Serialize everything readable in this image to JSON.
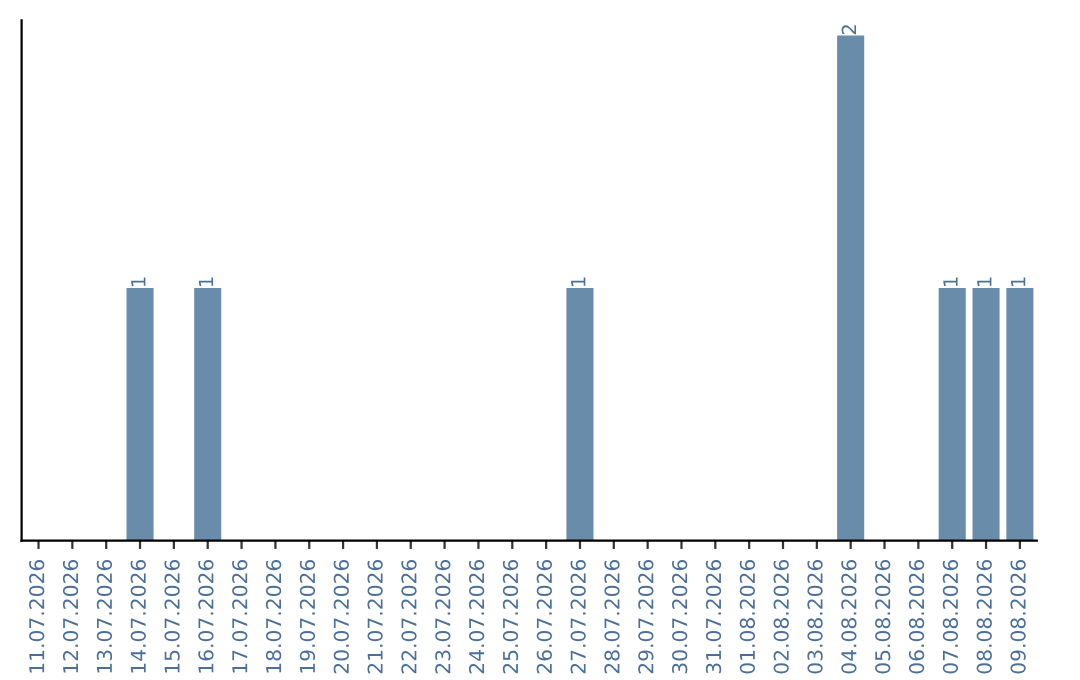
{
  "chart_data": {
    "type": "bar",
    "categories": [
      "11.07.2026",
      "12.07.2026",
      "13.07.2026",
      "14.07.2026",
      "15.07.2026",
      "16.07.2026",
      "17.07.2026",
      "18.07.2026",
      "19.07.2026",
      "20.07.2026",
      "21.07.2026",
      "22.07.2026",
      "23.07.2026",
      "24.07.2026",
      "25.07.2026",
      "26.07.2026",
      "27.07.2026",
      "28.07.2026",
      "29.07.2026",
      "30.07.2026",
      "31.07.2026",
      "01.08.2026",
      "02.08.2026",
      "03.08.2026",
      "04.08.2026",
      "05.08.2026",
      "06.08.2026",
      "07.08.2026",
      "08.08.2026",
      "09.08.2026"
    ],
    "values": [
      0,
      0,
      0,
      1,
      0,
      1,
      0,
      0,
      0,
      0,
      0,
      0,
      0,
      0,
      0,
      0,
      1,
      0,
      0,
      0,
      0,
      0,
      0,
      0,
      2,
      0,
      0,
      1,
      1,
      1
    ],
    "value_labels": [
      null,
      null,
      null,
      "1",
      null,
      "1",
      null,
      null,
      null,
      null,
      null,
      null,
      null,
      null,
      null,
      null,
      "1",
      null,
      null,
      null,
      null,
      null,
      null,
      null,
      "2",
      null,
      null,
      "1",
      "1",
      "1"
    ],
    "color": "#6a8cab",
    "tick_labels": "x",
    "grid": false
  }
}
